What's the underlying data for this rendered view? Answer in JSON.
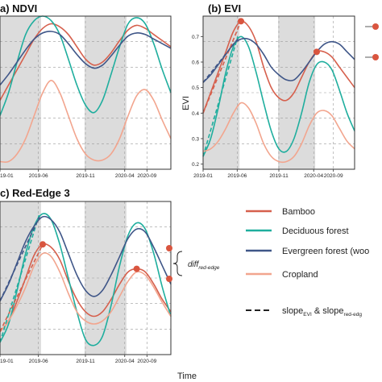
{
  "figure": {
    "xlabel": "Time",
    "legend": {
      "entries": [
        {
          "name": "Bamboo",
          "color": "#d6604d"
        },
        {
          "name": "Deciduous forest",
          "color": "#1fae9e"
        },
        {
          "name": "Evergreen forest (woo",
          "color": "#3f5688"
        },
        {
          "name": "Cropland",
          "color": "#f2a58e"
        }
      ],
      "slope_label": {
        "prefix": "slope",
        "sub1": "EVI",
        "mid": " & slope",
        "sub2": "red-edg"
      }
    },
    "annotation": {
      "main": "diff",
      "sub": "red-edge"
    },
    "colors": {
      "bamboo": "#d6604d",
      "deciduous": "#1fae9e",
      "evergreen": "#3f5688",
      "cropland": "#f2a58e",
      "shade": "#dcdcdc",
      "grid": "#9a9a9a",
      "marker": "#d9553f"
    }
  },
  "chart_data": [
    {
      "type": "line",
      "title": "a) NDVI",
      "xlabel": "",
      "ylabel": "",
      "x_ticks": [
        "19-01",
        "2019-06",
        "2019-11",
        "2020-04",
        "2020-09"
      ],
      "y_ticks": [],
      "ylim": [
        0,
        1
      ],
      "x": [
        0,
        1,
        2,
        3,
        4,
        5,
        6,
        7,
        8,
        9,
        10,
        11,
        12,
        13,
        14,
        15,
        16,
        17,
        18,
        19,
        20
      ],
      "series": [
        {
          "name": "Bamboo",
          "values": [
            0.45,
            0.55,
            0.65,
            0.75,
            0.85,
            0.92,
            0.95,
            0.93,
            0.88,
            0.8,
            0.72,
            0.68,
            0.7,
            0.76,
            0.84,
            0.91,
            0.94,
            0.92,
            0.88,
            0.84,
            0.8
          ]
        },
        {
          "name": "Deciduous forest",
          "values": [
            0.35,
            0.5,
            0.7,
            0.88,
            0.97,
            1.0,
            0.97,
            0.88,
            0.72,
            0.55,
            0.42,
            0.37,
            0.45,
            0.62,
            0.8,
            0.95,
            0.99,
            0.95,
            0.82,
            0.65,
            0.5
          ]
        },
        {
          "name": "Evergreen forest (woo",
          "values": [
            0.55,
            0.62,
            0.7,
            0.78,
            0.85,
            0.89,
            0.9,
            0.88,
            0.82,
            0.75,
            0.69,
            0.66,
            0.68,
            0.74,
            0.81,
            0.87,
            0.89,
            0.88,
            0.85,
            0.82,
            0.79
          ]
        },
        {
          "name": "Cropland",
          "values": [
            0.05,
            0.05,
            0.1,
            0.2,
            0.35,
            0.5,
            0.58,
            0.5,
            0.35,
            0.2,
            0.1,
            0.06,
            0.06,
            0.1,
            0.2,
            0.35,
            0.48,
            0.52,
            0.45,
            0.32,
            0.2
          ]
        }
      ]
    },
    {
      "type": "line",
      "title": "(b) EVI",
      "xlabel": "",
      "ylabel": "EVI",
      "x_ticks": [
        "2019-01",
        "2019-06",
        "2019-11",
        "2020-04",
        "2020-09"
      ],
      "y_ticks": [
        "0.2",
        "0.3",
        "0.4",
        "0.5",
        "0.6",
        "0.7"
      ],
      "ylim": [
        0.18,
        0.78
      ],
      "x": [
        0,
        1,
        2,
        3,
        4,
        5,
        6,
        7,
        8,
        9,
        10,
        11,
        12,
        13,
        14,
        15,
        16,
        17,
        18,
        19,
        20
      ],
      "series": [
        {
          "name": "Bamboo",
          "values": [
            0.4,
            0.48,
            0.56,
            0.64,
            0.72,
            0.76,
            0.74,
            0.68,
            0.58,
            0.5,
            0.46,
            0.45,
            0.48,
            0.54,
            0.6,
            0.64,
            0.64,
            0.62,
            0.58,
            0.54,
            0.5
          ]
        },
        {
          "name": "Deciduous forest",
          "values": [
            0.23,
            0.3,
            0.42,
            0.56,
            0.66,
            0.7,
            0.66,
            0.56,
            0.44,
            0.33,
            0.26,
            0.25,
            0.3,
            0.4,
            0.52,
            0.59,
            0.6,
            0.57,
            0.49,
            0.4,
            0.33
          ]
        },
        {
          "name": "Evergreen forest (woo",
          "values": [
            0.52,
            0.55,
            0.59,
            0.63,
            0.67,
            0.69,
            0.69,
            0.67,
            0.63,
            0.58,
            0.55,
            0.53,
            0.53,
            0.56,
            0.6,
            0.64,
            0.67,
            0.68,
            0.67,
            0.64,
            0.61
          ]
        },
        {
          "name": "Cropland",
          "values": [
            0.25,
            0.26,
            0.29,
            0.34,
            0.4,
            0.44,
            0.42,
            0.36,
            0.28,
            0.23,
            0.21,
            0.21,
            0.23,
            0.28,
            0.35,
            0.4,
            0.41,
            0.39,
            0.34,
            0.29,
            0.26
          ]
        }
      ]
    },
    {
      "type": "line",
      "title": "c) Red-Edge 3",
      "xlabel": "",
      "ylabel": "",
      "x_ticks": [
        "19-01",
        "2019-06",
        "2019-11",
        "2020-04",
        "2020-09"
      ],
      "y_ticks": [],
      "ylim": [
        0,
        1
      ],
      "x": [
        0,
        1,
        2,
        3,
        4,
        5,
        6,
        7,
        8,
        9,
        10,
        11,
        12,
        13,
        14,
        15,
        16,
        17,
        18,
        19,
        20
      ],
      "series": [
        {
          "name": "Bamboo",
          "values": [
            0.15,
            0.22,
            0.35,
            0.5,
            0.65,
            0.72,
            0.7,
            0.62,
            0.48,
            0.36,
            0.28,
            0.25,
            0.28,
            0.36,
            0.46,
            0.54,
            0.56,
            0.54,
            0.46,
            0.36,
            0.28
          ]
        },
        {
          "name": "Deciduous forest",
          "values": [
            0.08,
            0.2,
            0.42,
            0.66,
            0.84,
            0.92,
            0.88,
            0.72,
            0.5,
            0.28,
            0.1,
            0.06,
            0.12,
            0.32,
            0.58,
            0.78,
            0.86,
            0.82,
            0.66,
            0.44,
            0.25
          ]
        },
        {
          "name": "Evergreen forest (woo",
          "values": [
            0.35,
            0.46,
            0.6,
            0.74,
            0.84,
            0.9,
            0.88,
            0.8,
            0.66,
            0.52,
            0.42,
            0.38,
            0.42,
            0.52,
            0.64,
            0.76,
            0.82,
            0.8,
            0.7,
            0.58,
            0.46
          ]
        },
        {
          "name": "Cropland",
          "values": [
            0.15,
            0.22,
            0.32,
            0.44,
            0.58,
            0.66,
            0.64,
            0.54,
            0.4,
            0.28,
            0.22,
            0.2,
            0.22,
            0.28,
            0.38,
            0.48,
            0.54,
            0.52,
            0.44,
            0.34,
            0.25
          ]
        }
      ]
    }
  ]
}
